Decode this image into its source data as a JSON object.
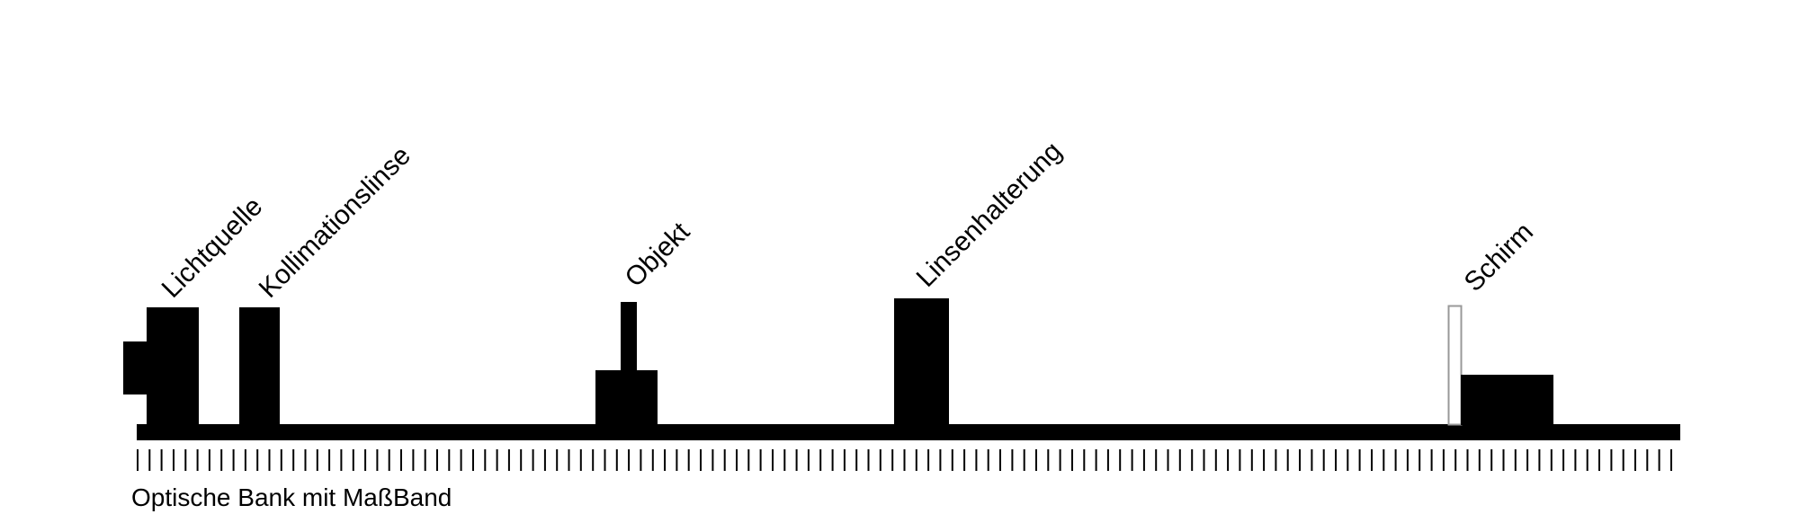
{
  "diagram": {
    "labels": {
      "light_source": "Lichtquelle",
      "collimation_lens": "Kollimationslinse",
      "object": "Objekt",
      "lens_holder": "Linsenhalterung",
      "screen": "Schirm"
    },
    "caption": "Optische Bank mit MaßBand",
    "colors": {
      "ink": "#000000",
      "background": "#ffffff",
      "screen_outline": "#999999"
    }
  }
}
